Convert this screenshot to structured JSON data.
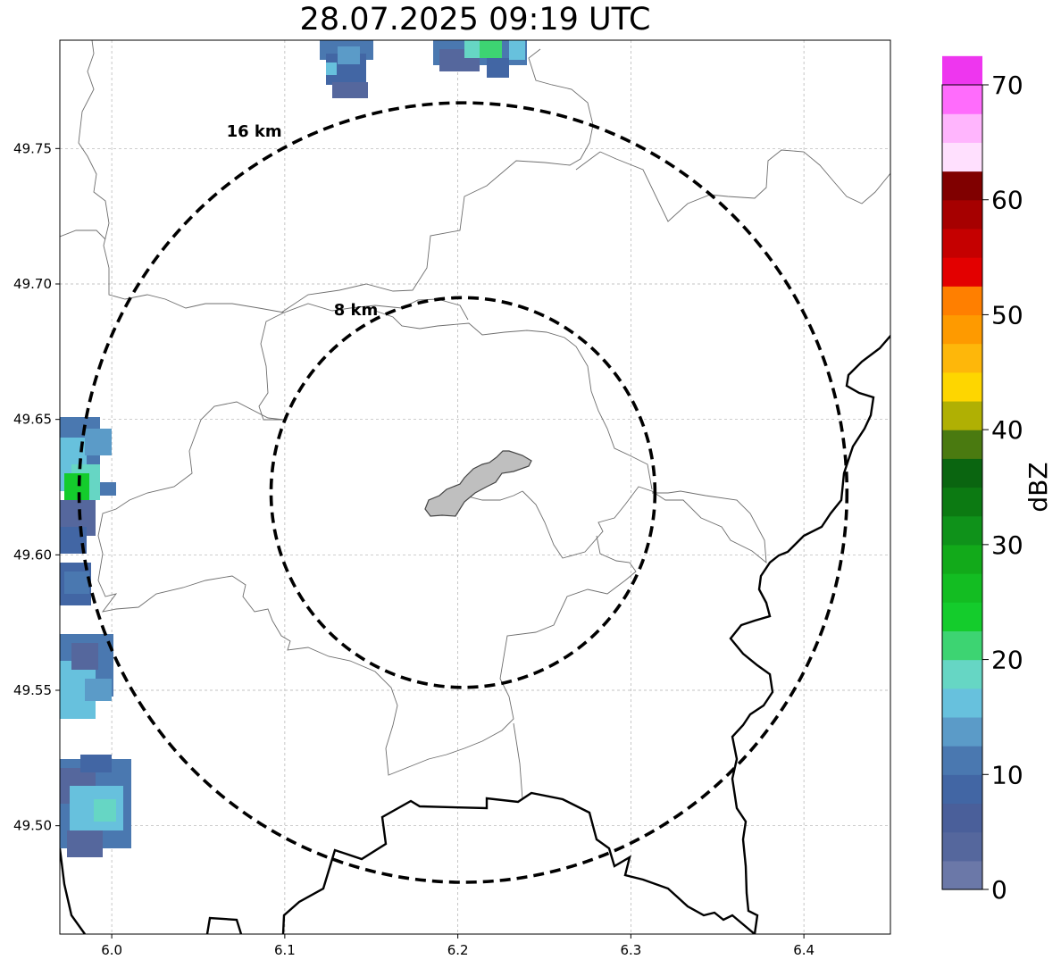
{
  "title": "28.07.2025 09:19 UTC",
  "map": {
    "lon_range": [
      5.97,
      6.45
    ],
    "lat_range": [
      49.46,
      49.79
    ],
    "x_ticks": [
      {
        "value": 6.0,
        "label": "6.0"
      },
      {
        "value": 6.1,
        "label": "6.1"
      },
      {
        "value": 6.2,
        "label": "6.2"
      },
      {
        "value": 6.3,
        "label": "6.3"
      },
      {
        "value": 6.4,
        "label": "6.4"
      }
    ],
    "y_ticks": [
      {
        "value": 49.5,
        "label": "49.50"
      },
      {
        "value": 49.55,
        "label": "49.55"
      },
      {
        "value": 49.6,
        "label": "49.60"
      },
      {
        "value": 49.65,
        "label": "49.65"
      },
      {
        "value": 49.7,
        "label": "49.70"
      },
      {
        "value": 49.75,
        "label": "49.75"
      }
    ],
    "grid": true,
    "center": {
      "lon": 6.203,
      "lat": 49.623
    },
    "rings": [
      {
        "radius_km": 8,
        "label": "8 km"
      },
      {
        "radius_km": 16,
        "label": "16 km"
      }
    ],
    "highlighted_area_color": "#bfbfbf",
    "radar_echoes_present": true
  },
  "colorbar": {
    "label": "dBZ",
    "ticks": [
      {
        "value": 0,
        "label": "0"
      },
      {
        "value": 10,
        "label": "10"
      },
      {
        "value": 20,
        "label": "20"
      },
      {
        "value": 30,
        "label": "30"
      },
      {
        "value": 40,
        "label": "40"
      },
      {
        "value": 50,
        "label": "50"
      },
      {
        "value": 60,
        "label": "60"
      },
      {
        "value": 70,
        "label": "70"
      }
    ],
    "range": [
      0,
      70
    ],
    "step": 2.5,
    "colors": [
      "#6b78a8",
      "#55679d",
      "#4a5f9a",
      "#4266a4",
      "#4a78b0",
      "#5b9bc8",
      "#67c1dd",
      "#66d6c4",
      "#3dd472",
      "#14cc2c",
      "#13bd22",
      "#12aa1a",
      "#0f921a",
      "#0c7a12",
      "#0a6510",
      "#4a7a10",
      "#b0b003",
      "#fed600",
      "#feb70a",
      "#fe9a00",
      "#ff7f00",
      "#e30000",
      "#c50000",
      "#a60000",
      "#800000",
      "#ffe0fe",
      "#ffb5fd",
      "#ff6cfc",
      "#ee36ef"
    ]
  }
}
